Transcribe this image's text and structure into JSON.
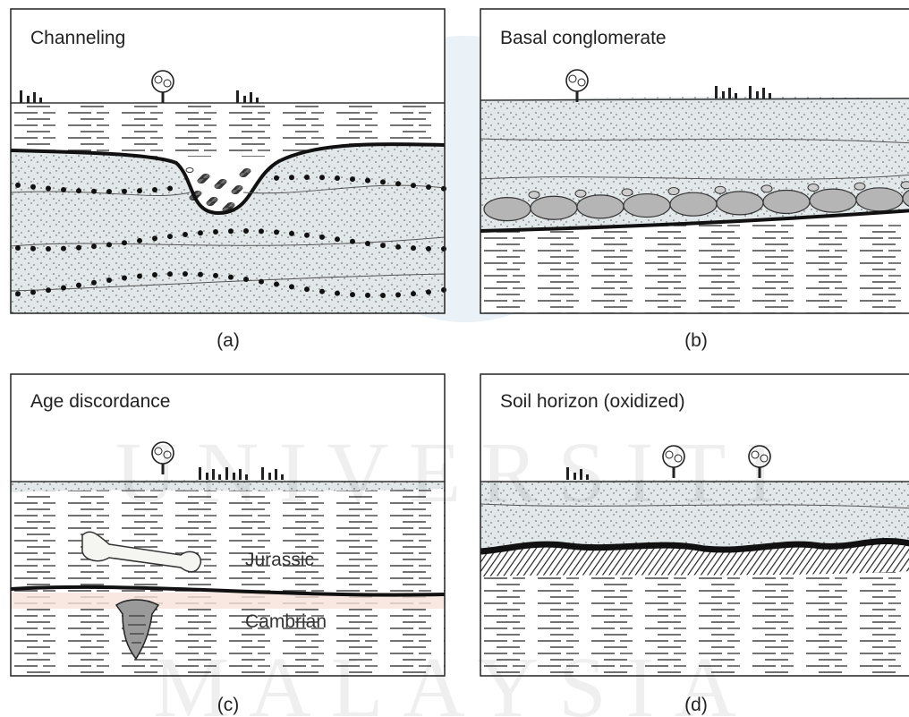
{
  "panels": [
    {
      "title": "Channeling",
      "caption": "(a)"
    },
    {
      "title": "Basal conglomerate",
      "caption": "(b)"
    },
    {
      "title": "Age discordance",
      "caption": "(c)",
      "labels": [
        "Jurassic",
        "Cambrian"
      ]
    },
    {
      "title": "Soil horizon (oxidized)",
      "caption": "(d)"
    }
  ],
  "watermark": [
    "UNIVERSITI",
    "MALAYSIA"
  ]
}
